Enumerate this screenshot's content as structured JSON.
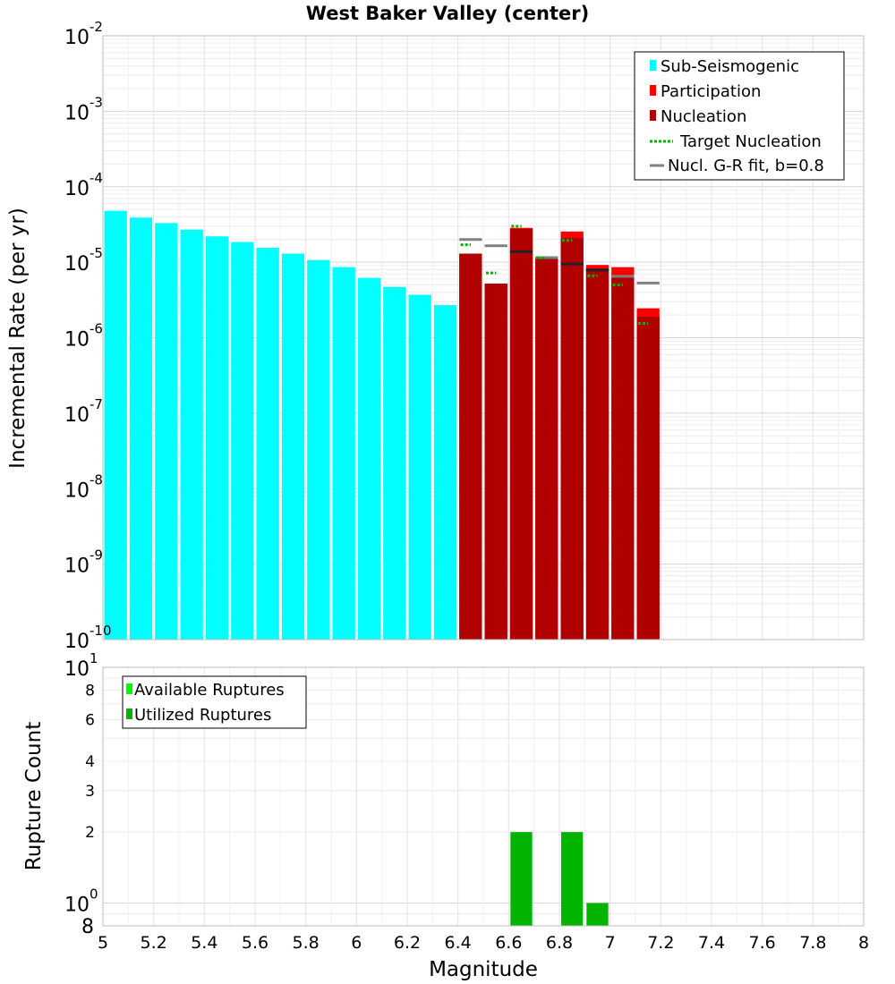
{
  "chart_data": [
    {
      "type": "bar",
      "title": "West Baker Valley (center)",
      "xlabel": "",
      "ylabel": "Incremental Rate (per yr)",
      "xlim": [
        5,
        8
      ],
      "ylim": [
        1e-10,
        0.01
      ],
      "y_scale": "log",
      "grid": true,
      "legend_position": "top-right",
      "y_tick_labels": [
        {
          "base": "10",
          "exp": "-2"
        },
        {
          "base": "10",
          "exp": "-3"
        },
        {
          "base": "10",
          "exp": "-4"
        },
        {
          "base": "10",
          "exp": "-5"
        },
        {
          "base": "10",
          "exp": "-6"
        },
        {
          "base": "10",
          "exp": "-7"
        },
        {
          "base": "10",
          "exp": "-8"
        },
        {
          "base": "10",
          "exp": "-9"
        },
        {
          "base": "10",
          "exp": "-10"
        }
      ],
      "series": [
        {
          "name": "Sub-Seismogenic",
          "color": "#00ffff",
          "x": [
            5.05,
            5.15,
            5.25,
            5.35,
            5.45,
            5.55,
            5.65,
            5.75,
            5.85,
            5.95,
            6.05,
            6.15,
            6.25,
            6.35
          ],
          "values": [
            4.8e-05,
            3.9e-05,
            3.3e-05,
            2.7e-05,
            2.2e-05,
            1.85e-05,
            1.55e-05,
            1.3e-05,
            1.07e-05,
            8.6e-06,
            6.2e-06,
            4.7e-06,
            3.7e-06,
            2.7e-06
          ]
        },
        {
          "name": "Participation",
          "color": "#ff0000",
          "x": [
            6.45,
            6.55,
            6.65,
            6.75,
            6.85,
            6.95,
            7.05,
            7.15
          ],
          "values": [
            1.3e-05,
            5.2e-06,
            2.85e-05,
            1.15e-05,
            2.55e-05,
            9.2e-06,
            8.6e-06,
            2.45e-06
          ]
        },
        {
          "name": "Nucleation",
          "color": "#b00000",
          "x": [
            6.45,
            6.55,
            6.65,
            6.75,
            6.85,
            6.95,
            7.05,
            7.15
          ],
          "values": [
            1.3e-05,
            5.2e-06,
            2.75e-05,
            1.12e-05,
            2.1e-05,
            8.2e-06,
            6.3e-06,
            1.9e-06
          ]
        },
        {
          "name": "Target Nucleation",
          "color": "#00b400",
          "x": [
            6.45,
            6.55,
            6.65,
            6.75,
            6.85,
            6.95,
            7.05,
            7.15
          ],
          "values": [
            1.7e-05,
            7.2e-06,
            3e-05,
            1.15e-05,
            1.95e-05,
            6.6e-06,
            5e-06,
            1.55e-06
          ]
        },
        {
          "name": "Nucl. G-R fit, b=0.8",
          "color": "#808080",
          "x": [
            6.45,
            6.55,
            6.65,
            6.75,
            6.85,
            6.95,
            7.05,
            7.15
          ],
          "values": [
            2e-05,
            1.65e-05,
            1.38e-05,
            1.15e-05,
            9.5e-06,
            7.9e-06,
            6.5e-06,
            5.3e-06
          ]
        }
      ]
    },
    {
      "type": "bar",
      "title": "",
      "xlabel": "Magnitude",
      "ylabel": "Rupture Count",
      "xlim": [
        5,
        8
      ],
      "y_scale": "log",
      "ylim": [
        0.8,
        10
      ],
      "grid": true,
      "legend_position": "top-left",
      "x_tick_labels": [
        "5",
        "5.2",
        "5.4",
        "5.6",
        "5.8",
        "6",
        "6.2",
        "6.4",
        "6.6",
        "6.8",
        "7",
        "7.2",
        "7.4",
        "7.6",
        "7.8",
        "8"
      ],
      "y_tick_labels": [
        {
          "value": 10,
          "base": "10",
          "exp": "1"
        },
        {
          "value": 8,
          "label": "8"
        },
        {
          "value": 6,
          "label": "6"
        },
        {
          "value": 4,
          "label": "4"
        },
        {
          "value": 3,
          "label": "3"
        },
        {
          "value": 2,
          "label": "2"
        },
        {
          "value": 1,
          "base": "10",
          "exp": "0"
        },
        {
          "value": 0.8,
          "label": "8"
        }
      ],
      "series": [
        {
          "name": "Available Ruptures",
          "color": "#00ff00",
          "x": [
            6.65,
            6.85,
            6.95
          ],
          "values": [
            2,
            2,
            1
          ]
        },
        {
          "name": "Utilized Ruptures",
          "color": "#00b400",
          "x": [
            6.65,
            6.85,
            6.95
          ],
          "values": [
            2,
            2,
            1
          ]
        }
      ]
    }
  ]
}
